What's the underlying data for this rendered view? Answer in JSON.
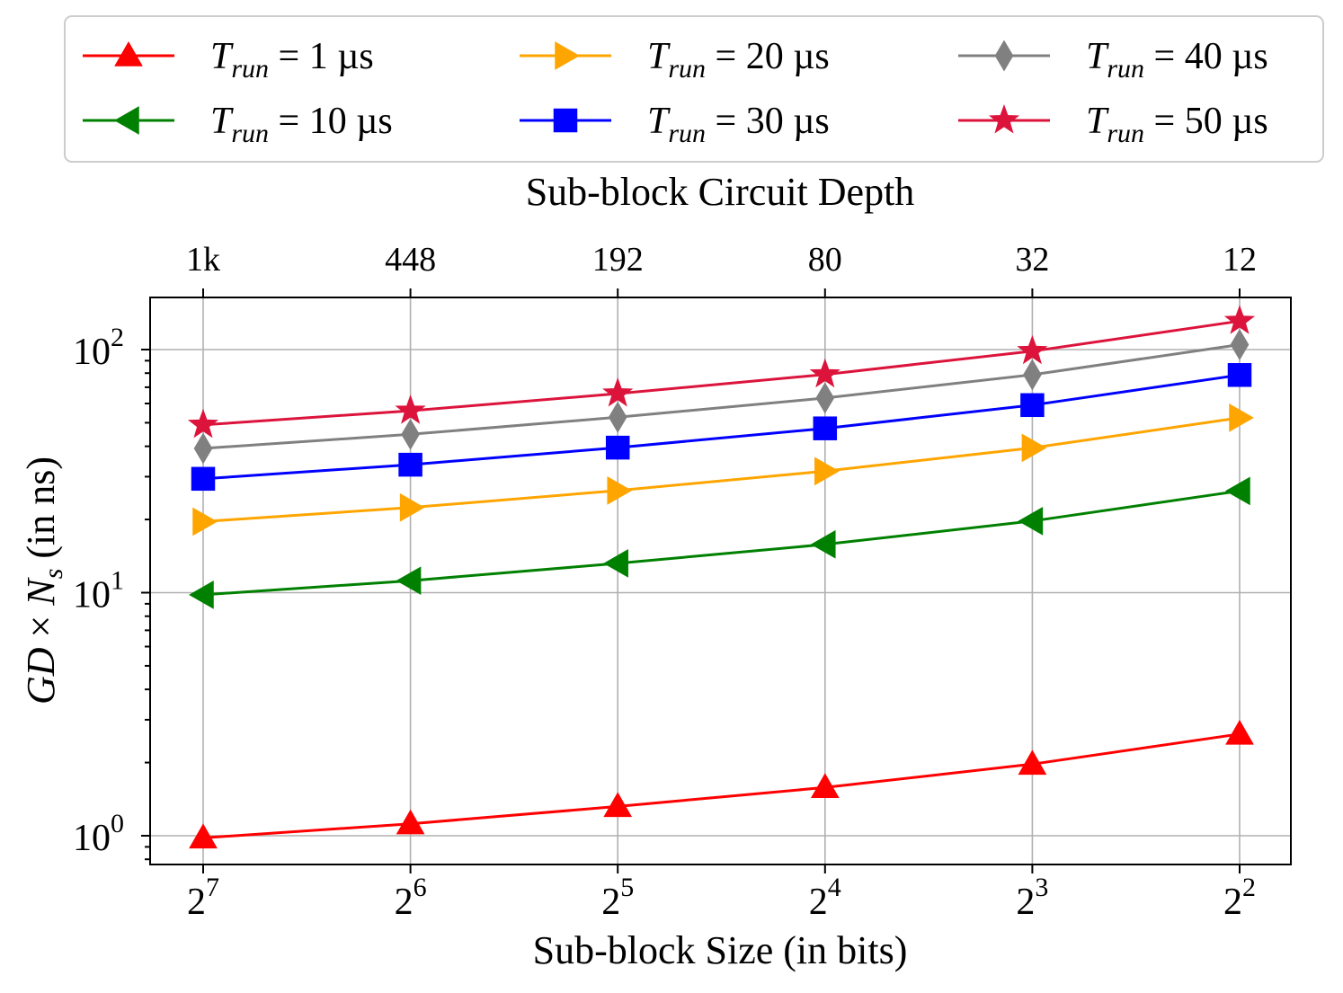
{
  "chart_data": {
    "type": "line",
    "xscale": "log2-reversed",
    "yscale": "log10",
    "x_exponents": [
      7,
      6,
      5,
      4,
      3,
      2
    ],
    "x_tick_base": "2",
    "x_tick_exponents": [
      "7",
      "6",
      "5",
      "4",
      "3",
      "2"
    ],
    "xlabel": "Sub-block Size (in bits)",
    "top_xlabel": "Sub-block Circuit Depth",
    "top_tick_labels": [
      "1k",
      "448",
      "192",
      "80",
      "32",
      "12"
    ],
    "ylabel_parts": {
      "gd": "GD",
      "times": "×",
      "n": "N",
      "sub": "s",
      "units": " (in ns)"
    },
    "y_tick_base": "10",
    "y_tick_exponents": [
      "0",
      "1",
      "2"
    ],
    "ylim": [
      0.8,
      170
    ],
    "grid": true,
    "legend_position": "top, outside",
    "legend_prefix": "T",
    "legend_subscript": "run",
    "series": [
      {
        "name": "T_run = 1 µs",
        "suffix": " = 1 µs",
        "color": "#ff0000",
        "marker": "triangle-up",
        "values": [
          0.98,
          1.12,
          1.32,
          1.58,
          1.97,
          2.62
        ]
      },
      {
        "name": "T_run = 10 µs",
        "suffix": " = 10 µs",
        "color": "#008000",
        "marker": "triangle-left",
        "values": [
          9.8,
          11.2,
          13.2,
          15.8,
          19.7,
          26.2
        ]
      },
      {
        "name": "T_run = 20 µs",
        "suffix": " = 20 µs",
        "color": "#ffa500",
        "marker": "triangle-right",
        "values": [
          19.6,
          22.4,
          26.3,
          31.6,
          39.4,
          52.4
        ]
      },
      {
        "name": "T_run = 30 µs",
        "suffix": " = 30 µs",
        "color": "#0000ff",
        "marker": "square",
        "values": [
          29.4,
          33.6,
          39.5,
          47.4,
          59.1,
          78.6
        ]
      },
      {
        "name": "T_run = 40 µs",
        "suffix": " = 40 µs",
        "color": "#808080",
        "marker": "diamond",
        "values": [
          39.2,
          44.8,
          52.7,
          63.2,
          78.8,
          104.8
        ]
      },
      {
        "name": "T_run = 50 µs",
        "suffix": " = 50 µs",
        "color": "#dc143c",
        "marker": "star",
        "values": [
          49.0,
          56.0,
          65.9,
          79.0,
          98.5,
          131.0
        ]
      }
    ]
  }
}
